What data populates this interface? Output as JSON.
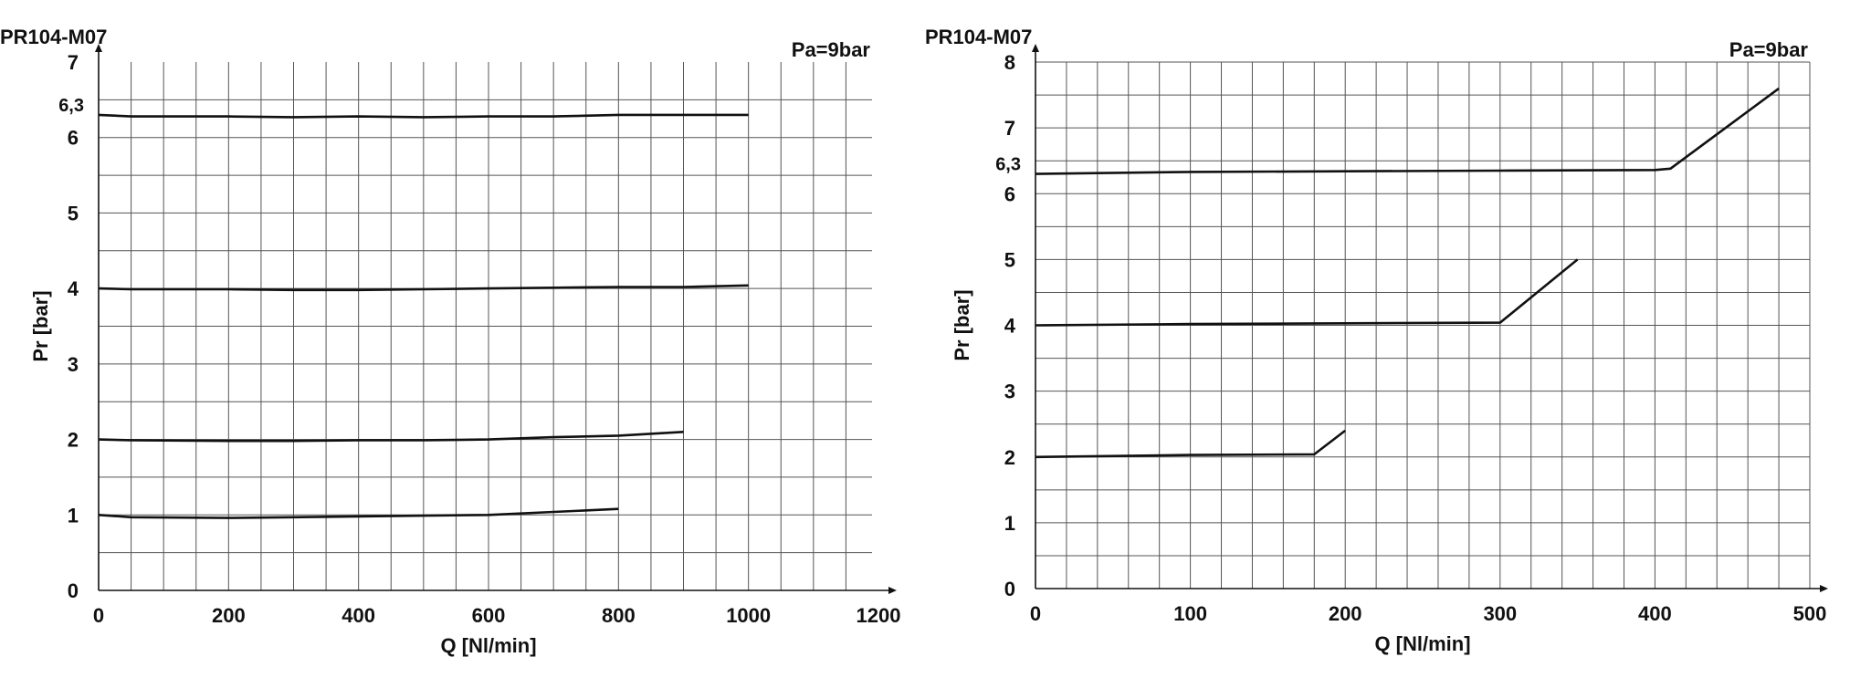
{
  "chart_data": [
    {
      "type": "line",
      "title": "PR104-M07",
      "legend_marker": "—",
      "annotation": "Pa=9bar",
      "xlabel": "Q [Nl/min]",
      "ylabel": "Pr [bar]",
      "xlim": [
        0,
        1200
      ],
      "ylim": [
        0,
        7
      ],
      "xticks": [
        0,
        200,
        400,
        600,
        800,
        1000,
        1200
      ],
      "yticks": [
        0,
        1,
        2,
        3,
        4,
        5,
        6,
        7
      ],
      "extra_ytick": {
        "value": 6.3,
        "label": "6,3"
      },
      "grid": true,
      "series": [
        {
          "x": [
            0,
            50,
            200,
            300,
            400,
            500,
            600,
            700,
            800,
            900,
            1000
          ],
          "y": [
            6.3,
            6.28,
            6.28,
            6.27,
            6.28,
            6.27,
            6.28,
            6.28,
            6.3,
            6.3,
            6.3
          ]
        },
        {
          "x": [
            0,
            50,
            200,
            300,
            400,
            500,
            600,
            700,
            800,
            900,
            1000
          ],
          "y": [
            4.0,
            3.99,
            3.99,
            3.98,
            3.98,
            3.99,
            4.0,
            4.01,
            4.02,
            4.02,
            4.04
          ]
        },
        {
          "x": [
            0,
            50,
            200,
            300,
            400,
            500,
            600,
            700,
            800,
            900
          ],
          "y": [
            2.0,
            1.99,
            1.98,
            1.98,
            1.99,
            1.99,
            2.0,
            2.03,
            2.05,
            2.1
          ]
        },
        {
          "x": [
            0,
            50,
            200,
            300,
            400,
            500,
            600,
            700,
            800
          ],
          "y": [
            1.0,
            0.97,
            0.96,
            0.97,
            0.98,
            0.99,
            1.0,
            1.04,
            1.08
          ]
        }
      ]
    },
    {
      "type": "line",
      "title": "PR104-M07",
      "legend_marker": "—",
      "annotation": "Pa=9bar",
      "xlabel": "Q [Nl/min]",
      "ylabel": "Pr [bar]",
      "xlim": [
        0,
        500
      ],
      "ylim": [
        0,
        8
      ],
      "xticks": [
        0,
        100,
        200,
        300,
        400,
        500
      ],
      "yticks": [
        0,
        1,
        2,
        3,
        4,
        5,
        6,
        7,
        8
      ],
      "extra_ytick": {
        "value": 6.3,
        "label": "6,3"
      },
      "grid": true,
      "series": [
        {
          "x": [
            0,
            100,
            200,
            300,
            400,
            410,
            480
          ],
          "y": [
            6.3,
            6.33,
            6.34,
            6.35,
            6.36,
            6.38,
            7.6
          ]
        },
        {
          "x": [
            0,
            100,
            200,
            300,
            350
          ],
          "y": [
            4.0,
            4.02,
            4.03,
            4.04,
            5.0
          ]
        },
        {
          "x": [
            0,
            100,
            180,
            200
          ],
          "y": [
            2.0,
            2.03,
            2.04,
            2.4
          ]
        }
      ]
    }
  ]
}
